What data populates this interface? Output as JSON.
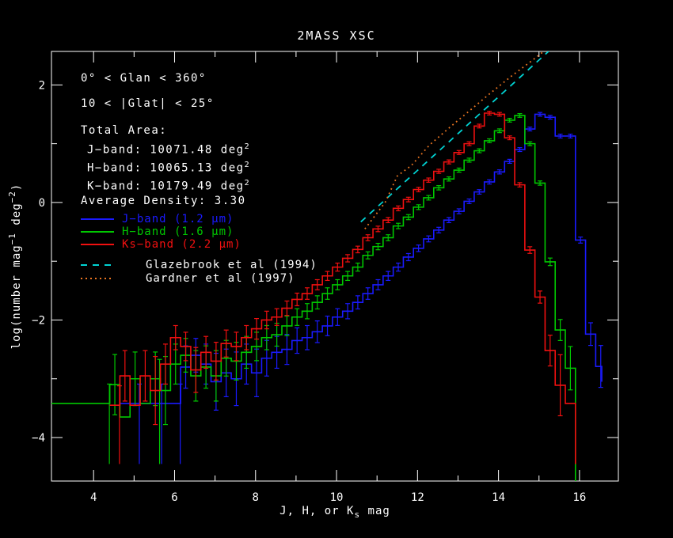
{
  "title": "2MASS XSC",
  "annotations": {
    "glon": "0° < Glan < 360°",
    "glat": "10 < |Glat| < 25°",
    "total_area": "Total Area:",
    "area_j": {
      "label": "J−band: 10071.48 deg",
      "sup": "2"
    },
    "area_h": {
      "label": "H−band: 10065.13 deg",
      "sup": "2"
    },
    "area_k": {
      "label": "K−band: 10179.49 deg",
      "sup": "2"
    },
    "avg_density": "Average Density: 3.30"
  },
  "legend": [
    {
      "label": "J−band (1.2 μm)",
      "color": "#1a1aff",
      "style": "solid"
    },
    {
      "label": "H−band (1.6 μm)",
      "color": "#00c800",
      "style": "solid"
    },
    {
      "label": "Ks−band (2.2 μm)",
      "color": "#f01010",
      "style": "solid"
    },
    {
      "label": "Glazebrook et al (1994)",
      "color": "#00d2d2",
      "style": "dashed",
      "text_color": "#ffffff"
    },
    {
      "label": "Gardner et al (1997)",
      "color": "#ee7722",
      "style": "dotted",
      "text_color": "#ffffff"
    }
  ],
  "chart_data": {
    "type": "step-histogram",
    "title": "2MASS XSC",
    "xlabel": "J, H, or Ks mag",
    "ylabel": "log(number mag^-1 deg^-2)",
    "xlabel_parts": [
      [
        "t",
        "J, H, or K"
      ],
      [
        "sub",
        "s"
      ],
      [
        "t",
        " mag"
      ]
    ],
    "ylabel_parts": [
      [
        "t",
        "log(number mag"
      ],
      [
        "sup",
        "−1"
      ],
      [
        "t",
        " deg"
      ],
      [
        "sup",
        "−2"
      ],
      [
        "t",
        ")"
      ]
    ],
    "xlim": [
      2.96,
      16.96
    ],
    "ylim": [
      -4.74,
      2.57
    ],
    "grid": false,
    "legend_position": "upper-left",
    "xticks": {
      "major": [
        4,
        6,
        8,
        10,
        12,
        14,
        16
      ],
      "minor": [
        5,
        7,
        9,
        11,
        13,
        15
      ],
      "labels": [
        "4",
        "6",
        "8",
        "10",
        "12",
        "14",
        "16"
      ]
    },
    "yticks": {
      "major": [
        2,
        0,
        -2,
        -4
      ],
      "minor": [
        1,
        -1,
        -3
      ],
      "labels": [
        "2",
        "0",
        "−2",
        "−4"
      ]
    },
    "bin_width_mag": 0.25,
    "series": [
      {
        "name": "J-band",
        "color": "#1a1aff",
        "start": 4.65,
        "width": 0.25,
        "values": [
          -3.42,
          -3.42,
          -3.42,
          -3.42,
          -3.42,
          -3.42,
          -2.8,
          -2.6,
          -2.75,
          -3.05,
          -2.9,
          -3.0,
          -2.75,
          -2.9,
          -2.65,
          -2.55,
          -2.5,
          -2.35,
          -2.3,
          -2.2,
          -2.1,
          -1.95,
          -1.85,
          -1.7,
          -1.55,
          -1.4,
          -1.25,
          -1.1,
          -0.93,
          -0.78,
          -0.62,
          -0.47,
          -0.3,
          -0.15,
          0.02,
          0.18,
          0.35,
          0.52,
          0.7,
          0.9,
          1.25,
          1.5,
          1.45,
          1.13,
          1.13,
          -0.64,
          -2.24,
          -2.79
        ],
        "deep_bars": [
          5.13,
          5.68,
          6.14
        ],
        "end": {
          "x": 16.55,
          "to": -3.05
        }
      },
      {
        "name": "H-band",
        "color": "#00c800",
        "start": 4.4,
        "width": 0.25,
        "pre": {
          "from": 2.96,
          "value": -3.42
        },
        "values": [
          -3.1,
          -3.65,
          -3.0,
          -3.42,
          -3.0,
          -3.2,
          -2.75,
          -2.6,
          -2.95,
          -2.8,
          -2.95,
          -2.65,
          -2.7,
          -2.55,
          -2.45,
          -2.3,
          -2.25,
          -2.1,
          -1.95,
          -1.85,
          -1.7,
          -1.55,
          -1.4,
          -1.25,
          -1.1,
          -0.9,
          -0.75,
          -0.6,
          -0.4,
          -0.25,
          -0.08,
          0.08,
          0.25,
          0.4,
          0.55,
          0.72,
          0.88,
          1.05,
          1.22,
          1.4,
          1.48,
          1.0,
          0.33,
          -1.01,
          -2.17,
          -2.82
        ],
        "deep_bars": [
          4.39,
          5.63
        ],
        "end": {
          "x": 15.9,
          "to": -4.74
        }
      },
      {
        "name": "Ks-band",
        "color": "#f01010",
        "start": 4.4,
        "width": 0.25,
        "values": [
          -3.45,
          -2.95,
          -3.45,
          -2.95,
          -3.2,
          -2.75,
          -2.3,
          -2.45,
          -2.85,
          -2.55,
          -2.7,
          -2.4,
          -2.45,
          -2.3,
          -2.15,
          -2.0,
          -1.95,
          -1.8,
          -1.65,
          -1.55,
          -1.4,
          -1.25,
          -1.1,
          -0.95,
          -0.8,
          -0.6,
          -0.45,
          -0.3,
          -0.1,
          0.05,
          0.22,
          0.38,
          0.53,
          0.69,
          0.85,
          1.0,
          1.3,
          1.52,
          1.5,
          1.1,
          0.3,
          -0.81,
          -1.61,
          -2.52,
          -3.11,
          -3.42
        ],
        "deep_bars": [
          4.64
        ],
        "end": {
          "x": 15.9,
          "to": -4.45
        }
      }
    ],
    "ref_lines": [
      {
        "name": "Glazebrook et al (1994)",
        "style": "dashed",
        "color": "#00d2d2",
        "points": [
          [
            10.6,
            -0.33
          ],
          [
            15.33,
            2.63
          ]
        ]
      },
      {
        "name": "Gardner et al (1997)",
        "style": "dotted",
        "color": "#ee7722",
        "points": [
          [
            10.7,
            -0.45
          ],
          [
            11.2,
            0.0
          ],
          [
            11.5,
            0.45
          ],
          [
            11.85,
            0.63
          ],
          [
            12.3,
            0.98
          ],
          [
            12.8,
            1.28
          ],
          [
            13.3,
            1.57
          ],
          [
            13.8,
            1.86
          ],
          [
            14.3,
            2.14
          ],
          [
            14.8,
            2.4
          ],
          [
            15.3,
            2.67
          ]
        ]
      }
    ]
  }
}
